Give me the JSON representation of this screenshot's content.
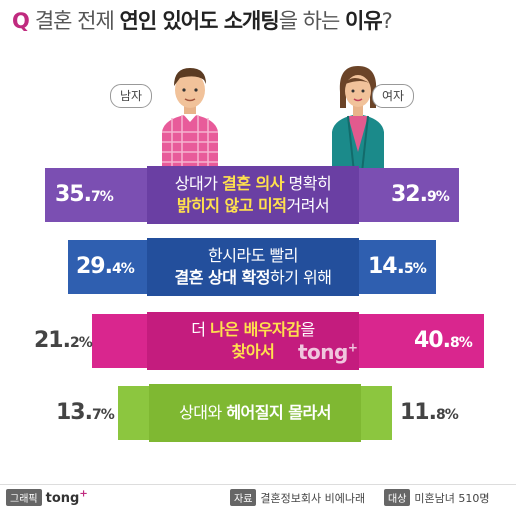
{
  "title": {
    "q": "Q",
    "part1": "결혼 전제 ",
    "part2": "연인 있어도 소개팅",
    "part3": "을 하는 ",
    "part4": "이유",
    "part5": "?"
  },
  "labels": {
    "male": "남자",
    "female": "여자"
  },
  "colors": {
    "purple": "#7b4fb2",
    "blue": "#2f5fb0",
    "magenta": "#d9268e",
    "green": "#8cc63f",
    "male_shirt": "#e85b9a",
    "female_jacket": "#1b8a8a"
  },
  "chart_data": {
    "type": "table",
    "categories": [
      "상대가 결혼 의사 명확히 밝히지 않고 미적거려서",
      "한시라도 빨리 결혼 상대 확정하기 위해",
      "더 나은 배우자감을 찾아서",
      "상대와 헤어질지 몰라서"
    ],
    "series": [
      {
        "name": "남자",
        "values": [
          35.7,
          29.4,
          21.2,
          13.7
        ]
      },
      {
        "name": "여자",
        "values": [
          32.9,
          14.5,
          40.8,
          11.8
        ]
      }
    ],
    "rows": [
      {
        "male_int": "35.",
        "male_dec": "7%",
        "female_int": "32.",
        "female_dec": "9%"
      },
      {
        "male_int": "29.",
        "male_dec": "4%",
        "female_int": "14.",
        "female_dec": "5%"
      },
      {
        "male_int": "21.",
        "male_dec": "2%",
        "female_int": "40.",
        "female_dec": "8%"
      },
      {
        "male_int": "13.",
        "male_dec": "7%",
        "female_int": "11.",
        "female_dec": "8%"
      }
    ],
    "reasons": [
      {
        "line1_a": "상대가 ",
        "line1_b": "결혼 의사",
        "line1_c": " 명확히",
        "line2_a": "밝히지 않고 미적",
        "line2_b": "거려서"
      },
      {
        "line1_a": "한시라도 빨리",
        "line1_b": "",
        "line1_c": "",
        "line2_a": "결혼 상대 확정",
        "line2_b": "하기 위해"
      },
      {
        "line1_a": "더 ",
        "line1_b": "나은 배우자감",
        "line1_c": "을",
        "line2_a": "찾아서",
        "line2_b": ""
      },
      {
        "line1_a": "상대와 ",
        "line1_b": "헤어질지 몰라서",
        "line1_c": "",
        "line2_a": "",
        "line2_b": ""
      }
    ]
  },
  "watermark": {
    "text": "tong",
    "plus": "+"
  },
  "footer": {
    "graphic_tag": "그래픽",
    "brand": "tong",
    "brand_plus": "+",
    "source_tag": "자료",
    "source": "결혼정보회사 비에나래",
    "target_tag": "대상",
    "target": "미혼남녀 510명"
  }
}
